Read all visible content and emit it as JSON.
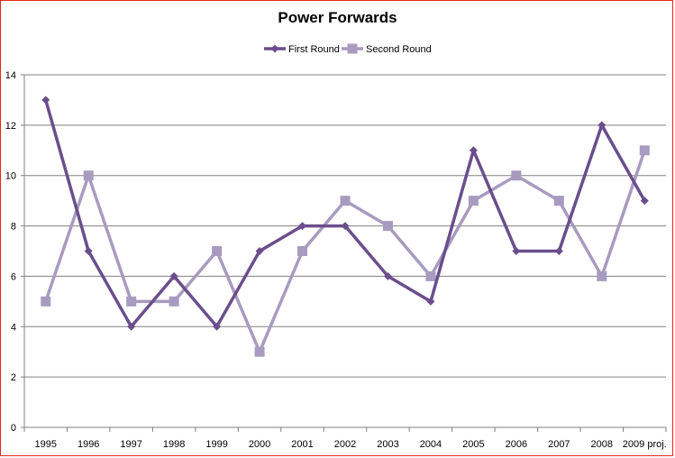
{
  "chart_data": {
    "type": "line",
    "title": "Power Forwards",
    "categories": [
      "1995",
      "1996",
      "1997",
      "1998",
      "1999",
      "2000",
      "2001",
      "2002",
      "2003",
      "2004",
      "2005",
      "2006",
      "2007",
      "2008",
      "2009 proj."
    ],
    "ylim": [
      0,
      14
    ],
    "yticks": [
      0,
      2,
      4,
      6,
      8,
      10,
      12,
      14
    ],
    "grid": true,
    "legend_position": "top",
    "series": [
      {
        "name": "First Round",
        "color": "#6b4e8c",
        "marker": "diamond",
        "values": [
          13,
          7,
          4,
          6,
          4,
          7,
          8,
          8,
          6,
          5,
          11,
          7,
          7,
          12,
          9
        ]
      },
      {
        "name": "Second Round",
        "color": "#a89bc0",
        "marker": "square",
        "values": [
          5,
          10,
          5,
          5,
          7,
          3,
          7,
          9,
          8,
          6,
          9,
          10,
          9,
          6,
          11
        ]
      }
    ]
  }
}
